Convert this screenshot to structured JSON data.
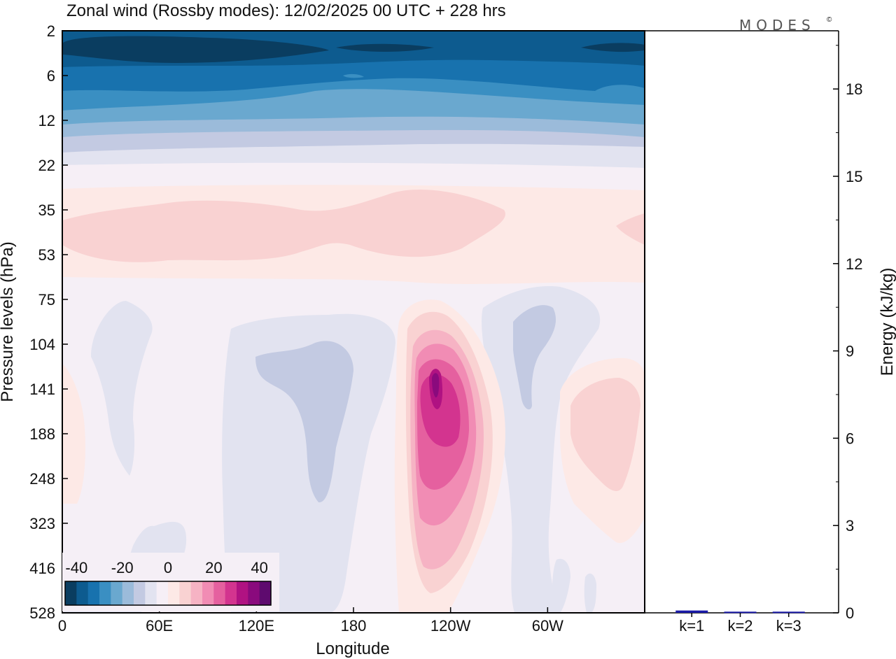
{
  "figure": {
    "title": "Zonal wind (Rossby modes):  12/02/2025  00 UTC  + 228 hrs",
    "brand": "MODES",
    "brand_mark": "©"
  },
  "chart_data": [
    {
      "type": "heatmap",
      "xlabel": "Longitude",
      "ylabel": "Pressure levels (hPa)",
      "x_ticks": [
        "0",
        "60E",
        "120E",
        "180",
        "120W",
        "60W"
      ],
      "x_tick_values": [
        0,
        60,
        120,
        180,
        240,
        300
      ],
      "xlim": [
        0,
        360
      ],
      "y_ticks": [
        "2",
        "6",
        "12",
        "22",
        "35",
        "53",
        "75",
        "104",
        "141",
        "188",
        "248",
        "323",
        "416",
        "528"
      ],
      "y_axis_direction": "pressure increasing downward (level-indexed)",
      "colorbar": {
        "tick_labels": [
          "-40",
          "-20",
          "0",
          "20",
          "40"
        ],
        "tick_values": [
          -40,
          -20,
          0,
          20,
          40
        ],
        "range": [
          -45,
          45
        ],
        "colors": [
          "#0a3d60",
          "#0d5b8f",
          "#1872ae",
          "#3a8fc2",
          "#6aa8cf",
          "#9bbbda",
          "#c3cae2",
          "#e2e3f0",
          "#f6eff6",
          "#fde9e6",
          "#f9d2d2",
          "#f6b3c4",
          "#f18cb4",
          "#e5609f",
          "#d3348f",
          "#b01282",
          "#8a0a7d",
          "#5e0a6e"
        ]
      },
      "features": [
        {
          "name": "upper-level easterlies",
          "levels": [
            "2",
            "12"
          ],
          "approx_min": -40
        },
        {
          "name": "weak westerly band",
          "levels": [
            "35",
            "53"
          ],
          "approx_max": 8
        },
        {
          "name": "westerly jet core",
          "longitude": "110W",
          "level": "141",
          "approx_max": 38
        },
        {
          "name": "easterly lobe",
          "longitude": "150E",
          "level": "141",
          "approx_min": -6
        },
        {
          "name": "easterly lobe",
          "longitude": "60W",
          "level": "104",
          "approx_min": -5
        },
        {
          "name": "westerly lobe",
          "longitude": "20W",
          "level": "188",
          "approx_max": 5
        }
      ],
      "grid": false
    },
    {
      "type": "bar",
      "categories": [
        "k=1",
        "k=2",
        "k=3"
      ],
      "values": [
        0.08,
        0.04,
        0.04
      ],
      "ylabel": "Energy (kJ/kg)",
      "y_ticks": [
        0,
        3,
        6,
        9,
        12,
        15,
        18
      ],
      "ylim": [
        0,
        20
      ],
      "bar_color": "#1a1aa8",
      "y_axis_side": "right"
    }
  ]
}
